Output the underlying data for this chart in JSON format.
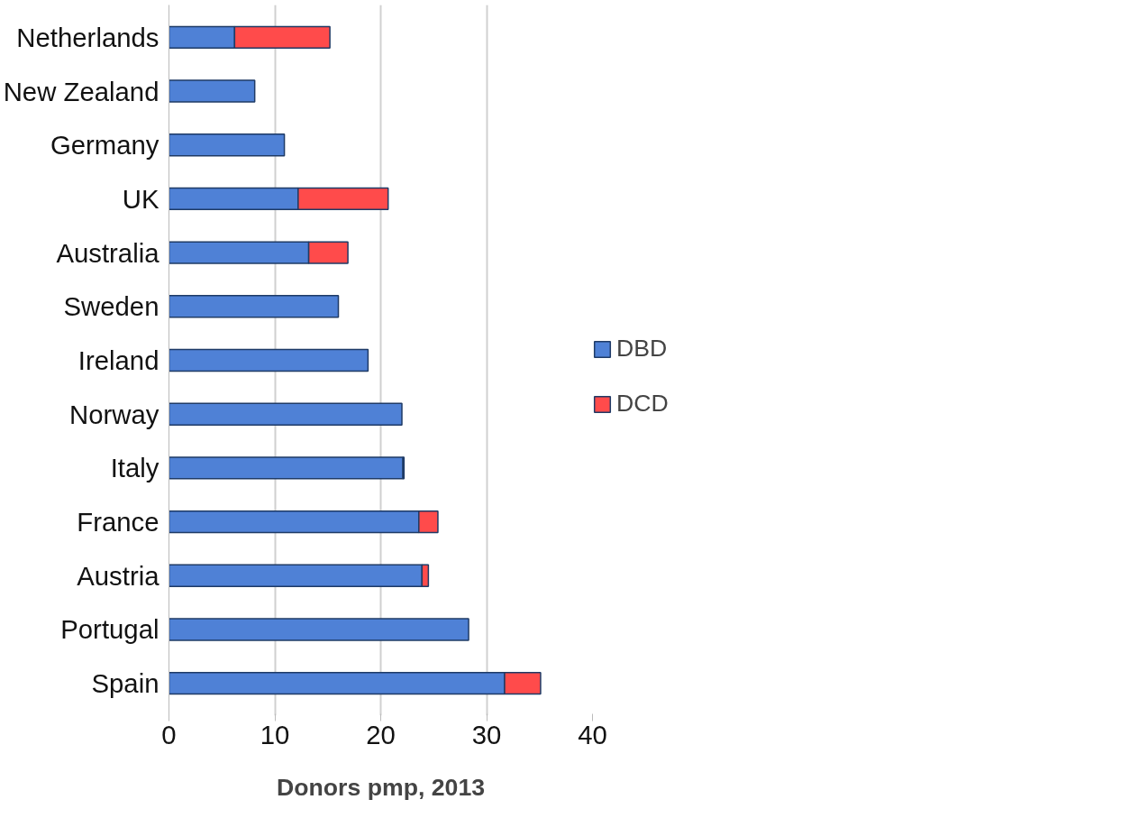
{
  "chart_data": {
    "type": "bar",
    "orientation": "horizontal",
    "stacked": true,
    "xlabel": "Donors pmp, 2013",
    "categories": [
      "Netherlands",
      "New Zealand",
      "Germany",
      "UK",
      "Australia",
      "Sweden",
      "Ireland",
      "Norway",
      "Italy",
      "France",
      "Austria",
      "Portugal",
      "Spain"
    ],
    "series": [
      {
        "name": "DBD",
        "color": "#4f81d6",
        "values": [
          6.2,
          8.1,
          10.9,
          12.2,
          13.2,
          16.0,
          18.8,
          22.0,
          22.1,
          23.6,
          23.9,
          28.3,
          31.7
        ]
      },
      {
        "name": "DCD",
        "color": "#ff4b4b",
        "values": [
          9.0,
          null,
          null,
          8.5,
          3.7,
          null,
          null,
          null,
          0.1,
          1.8,
          0.6,
          null,
          3.4
        ]
      }
    ],
    "xlim": [
      0,
      40
    ],
    "xticks": [
      0,
      10,
      20,
      30,
      40
    ],
    "grid": "x",
    "legend": "right"
  }
}
